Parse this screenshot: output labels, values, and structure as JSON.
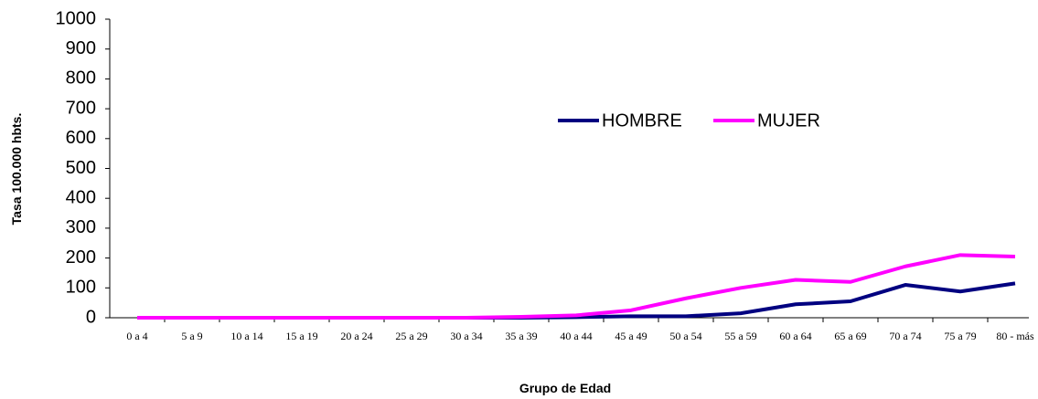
{
  "chart_data": {
    "type": "line",
    "categories": [
      "0 a 4",
      "5 a 9",
      "10 a 14",
      "15 a 19",
      "20 a 24",
      "25 a 29",
      "30 a 34",
      "35 a 39",
      "40 a 44",
      "45 a 49",
      "50 a 54",
      "55 a 59",
      "60 a 64",
      "65 a 69",
      "70 a 74",
      "75 a 79",
      "80 - más"
    ],
    "series": [
      {
        "name": "HOMBRE",
        "color": "#000080",
        "values": [
          0,
          0,
          0,
          0,
          0,
          0,
          0,
          0,
          2,
          5,
          5,
          15,
          45,
          55,
          110,
          88,
          115
        ]
      },
      {
        "name": "MUJER",
        "color": "#ff00ff",
        "values": [
          0,
          0,
          0,
          0,
          0,
          0,
          0,
          3,
          8,
          25,
          65,
          100,
          127,
          120,
          172,
          210,
          205
        ]
      }
    ],
    "ylim": [
      0,
      1000
    ],
    "yticks": [
      0,
      100,
      200,
      300,
      400,
      500,
      600,
      700,
      800,
      900,
      1000
    ],
    "ylabel": "Tasa 100.000 hbts.",
    "xlabel": "Grupo de Edad",
    "grid": false
  }
}
